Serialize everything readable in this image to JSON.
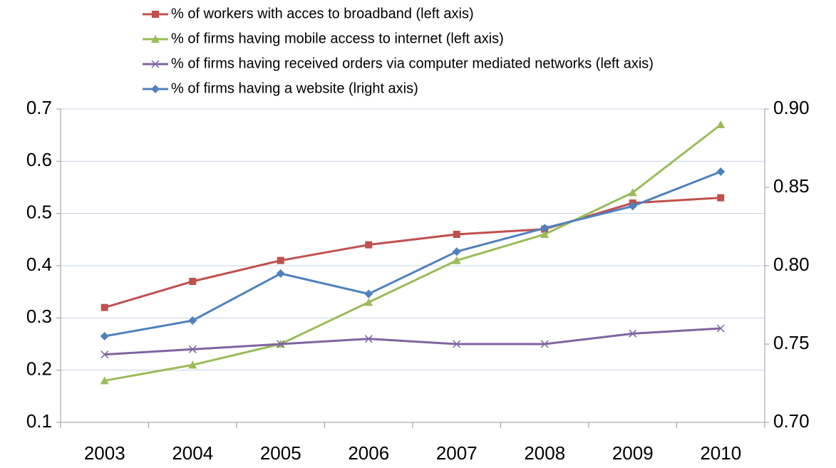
{
  "chart_data": {
    "type": "line",
    "categories": [
      "2003",
      "2004",
      "2005",
      "2006",
      "2007",
      "2008",
      "2009",
      "2010"
    ],
    "series": [
      {
        "name": "% of workers with acces to broadband (left axis)",
        "color": "#c0504d",
        "marker": "square",
        "values": [
          0.32,
          0.37,
          0.41,
          0.44,
          0.46,
          0.47,
          0.52,
          0.53
        ]
      },
      {
        "name": "% of firms having mobile access to internet (left axis)",
        "color": "#9bbb59",
        "marker": "triangle",
        "values": [
          0.18,
          0.21,
          0.25,
          0.33,
          0.41,
          0.46,
          0.54,
          0.67
        ]
      },
      {
        "name": "% of firms having received orders via computer mediated networks (left axis)",
        "color": "#8064a2",
        "marker": "x",
        "values": [
          0.23,
          0.24,
          0.25,
          0.26,
          0.25,
          0.25,
          0.27,
          0.28
        ]
      },
      {
        "name": "% of firms having a website (lright axis)",
        "color": "#4f81bd",
        "marker": "diamond",
        "axis": "y2",
        "values": [
          0.755,
          0.765,
          0.795,
          0.782,
          0.809,
          0.824,
          0.838,
          0.86
        ]
      }
    ],
    "ylim": [
      0.1,
      0.7
    ],
    "yticks": [
      0.1,
      0.2,
      0.3,
      0.4,
      0.5,
      0.6,
      0.7
    ],
    "y2lim": [
      0.7,
      0.9
    ],
    "y2ticks": [
      {
        "value": 0.7,
        "label": "0.70"
      },
      {
        "value": 0.75,
        "label": "0.75"
      },
      {
        "value": 0.8,
        "label": "0.80"
      },
      {
        "value": 0.85,
        "label": "0.85"
      },
      {
        "value": 0.9,
        "label": "0.90"
      }
    ],
    "grid": true
  }
}
